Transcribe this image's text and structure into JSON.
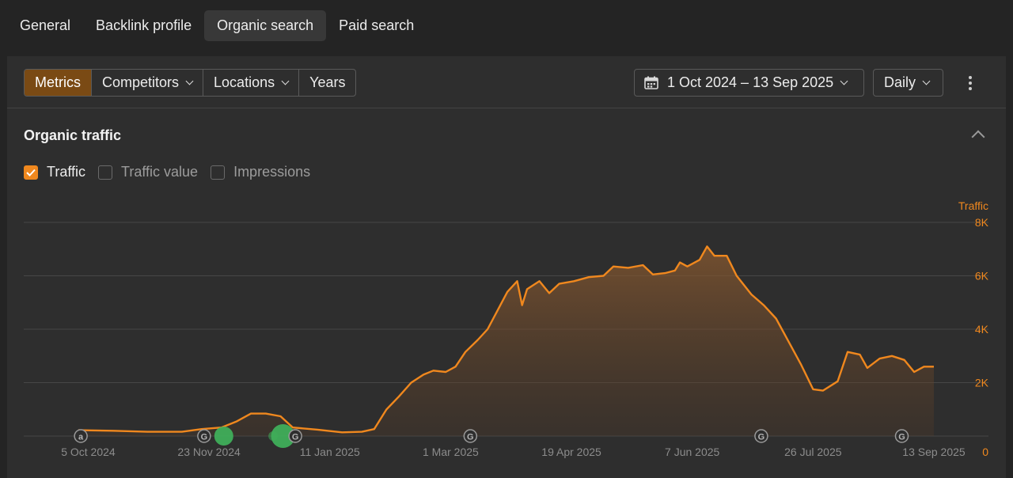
{
  "top_tabs": [
    {
      "label": "General"
    },
    {
      "label": "Backlink profile"
    },
    {
      "label": "Organic search",
      "active": true
    },
    {
      "label": "Paid search"
    }
  ],
  "toolbar": {
    "segments": [
      {
        "label": "Metrics",
        "active": true
      },
      {
        "label": "Competitors",
        "dropdown": true
      },
      {
        "label": "Locations",
        "dropdown": true
      },
      {
        "label": "Years"
      }
    ],
    "date_range": "1 Oct 2024 – 13 Sep 2025",
    "granularity": "Daily",
    "calendar_icon": "calendar-icon",
    "more_icon": "more-vertical-icon"
  },
  "section": {
    "title": "Organic traffic",
    "collapse_icon": "chevron-up-icon"
  },
  "metrics": [
    {
      "label": "Traffic",
      "checked": true
    },
    {
      "label": "Traffic value",
      "checked": false
    },
    {
      "label": "Impressions",
      "checked": false
    }
  ],
  "colors": {
    "accent": "#f0881e",
    "update_green": "#3fae5a",
    "background": "#242424",
    "panel": "#2e2e2e"
  },
  "chart_data": {
    "type": "area",
    "ylabel": "Traffic",
    "ylim": [
      0,
      8000
    ],
    "y_ticks": [
      "0",
      "2K",
      "4K",
      "6K",
      "8K"
    ],
    "y_tick_values": [
      0,
      2000,
      4000,
      6000,
      8000
    ],
    "x_ticks": [
      "5 Oct 2024",
      "23 Nov 2024",
      "11 Jan 2025",
      "1 Mar 2025",
      "19 Apr 2025",
      "7 Jun 2025",
      "26 Jul 2025",
      "13 Sep 2025"
    ],
    "x_tick_values": [
      "2024-10-05",
      "2024-11-23",
      "2025-01-11",
      "2025-03-01",
      "2025-04-19",
      "2025-06-07",
      "2025-07-26",
      "2025-09-13"
    ],
    "xlim": [
      "2024-10-01",
      "2025-09-13"
    ],
    "grid": true,
    "series": [
      {
        "name": "Traffic",
        "color": "#f0881e",
        "points": [
          [
            "2024-10-01",
            220
          ],
          [
            "2024-10-15",
            200
          ],
          [
            "2024-10-29",
            160
          ],
          [
            "2024-11-12",
            160
          ],
          [
            "2024-11-20",
            260
          ],
          [
            "2024-11-28",
            320
          ],
          [
            "2024-12-04",
            540
          ],
          [
            "2024-12-10",
            840
          ],
          [
            "2024-12-16",
            840
          ],
          [
            "2024-12-22",
            740
          ],
          [
            "2024-12-27",
            320
          ],
          [
            "2025-01-06",
            240
          ],
          [
            "2025-01-16",
            140
          ],
          [
            "2025-01-24",
            160
          ],
          [
            "2025-01-29",
            260
          ],
          [
            "2025-02-03",
            1000
          ],
          [
            "2025-02-08",
            1480
          ],
          [
            "2025-02-13",
            2000
          ],
          [
            "2025-02-18",
            2300
          ],
          [
            "2025-02-22",
            2450
          ],
          [
            "2025-02-27",
            2400
          ],
          [
            "2025-03-03",
            2600
          ],
          [
            "2025-03-07",
            3150
          ],
          [
            "2025-03-12",
            3600
          ],
          [
            "2025-03-16",
            4000
          ],
          [
            "2025-03-20",
            4700
          ],
          [
            "2025-03-24",
            5400
          ],
          [
            "2025-03-28",
            5800
          ],
          [
            "2025-03-30",
            4900
          ],
          [
            "2025-04-01",
            5500
          ],
          [
            "2025-04-06",
            5800
          ],
          [
            "2025-04-10",
            5350
          ],
          [
            "2025-04-14",
            5700
          ],
          [
            "2025-04-20",
            5800
          ],
          [
            "2025-04-26",
            5950
          ],
          [
            "2025-05-02",
            6000
          ],
          [
            "2025-05-06",
            6350
          ],
          [
            "2025-05-12",
            6300
          ],
          [
            "2025-05-18",
            6400
          ],
          [
            "2025-05-22",
            6050
          ],
          [
            "2025-05-27",
            6100
          ],
          [
            "2025-05-31",
            6200
          ],
          [
            "2025-06-02",
            6500
          ],
          [
            "2025-06-05",
            6350
          ],
          [
            "2025-06-10",
            6600
          ],
          [
            "2025-06-13",
            7100
          ],
          [
            "2025-06-16",
            6750
          ],
          [
            "2025-06-21",
            6750
          ],
          [
            "2025-06-25",
            6000
          ],
          [
            "2025-07-01",
            5300
          ],
          [
            "2025-07-06",
            4900
          ],
          [
            "2025-07-11",
            4400
          ],
          [
            "2025-07-16",
            3550
          ],
          [
            "2025-07-21",
            2700
          ],
          [
            "2025-07-26",
            1750
          ],
          [
            "2025-07-30",
            1700
          ],
          [
            "2025-08-05",
            2050
          ],
          [
            "2025-08-09",
            3150
          ],
          [
            "2025-08-14",
            3050
          ],
          [
            "2025-08-17",
            2550
          ],
          [
            "2025-08-22",
            2900
          ],
          [
            "2025-08-27",
            3000
          ],
          [
            "2025-09-01",
            2850
          ],
          [
            "2025-09-05",
            2400
          ],
          [
            "2025-09-09",
            2600
          ],
          [
            "2025-09-13",
            2600
          ]
        ]
      }
    ],
    "annotations": [
      {
        "icon": "a",
        "date": "2024-10-02"
      },
      {
        "icon": "G",
        "date": "2024-11-21"
      },
      {
        "icon": "G",
        "date": "2024-12-28"
      },
      {
        "icon": "G",
        "date": "2025-03-09"
      },
      {
        "icon": "G",
        "date": "2025-07-05"
      },
      {
        "icon": "G",
        "date": "2025-08-31"
      }
    ],
    "update_markers": [
      {
        "date": "2024-11-29",
        "size": "medium"
      },
      {
        "date": "2024-12-19",
        "size": "small"
      },
      {
        "date": "2024-12-23",
        "size": "large"
      }
    ]
  }
}
